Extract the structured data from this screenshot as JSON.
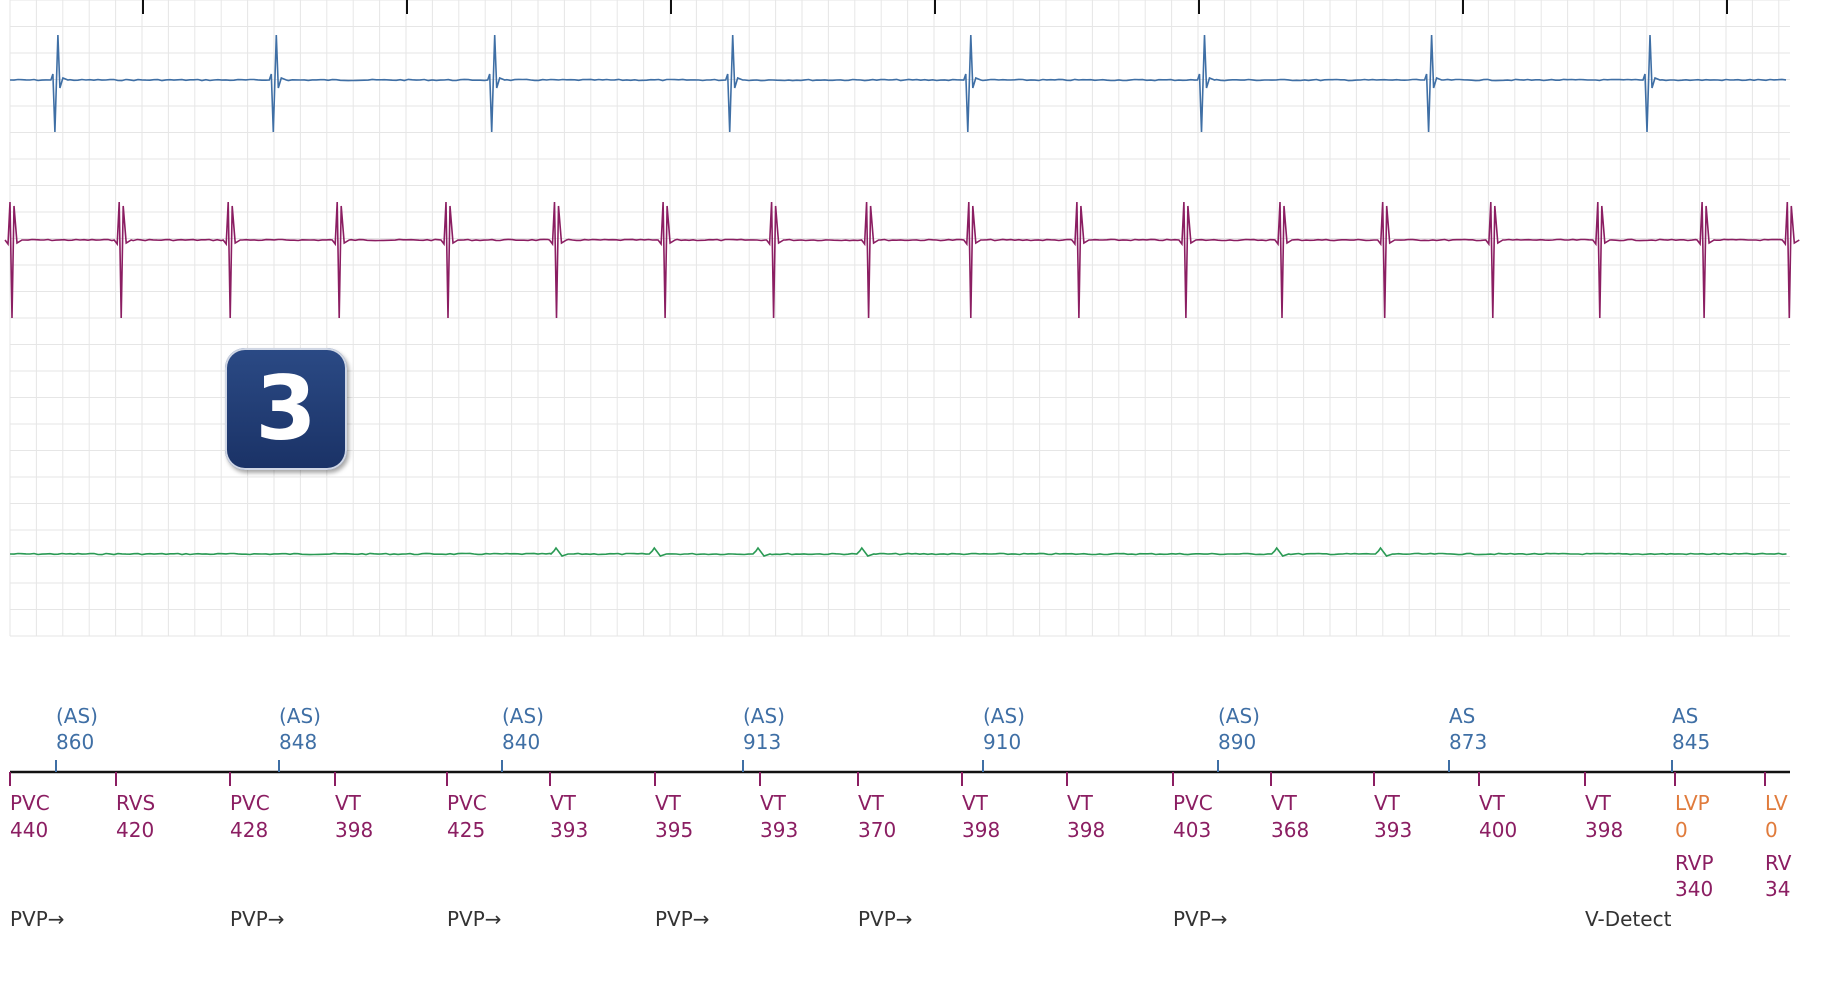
{
  "badge": {
    "label": "3"
  },
  "colors": {
    "atrial": "#3f6fa5",
    "ventricular": "#8b1e62",
    "lv": "#e07b3c",
    "shock": "#2a9a54",
    "marker_text": "#333333",
    "grid": "#e6e6e6"
  },
  "chart_data": {
    "type": "line",
    "title": "",
    "channels": [
      {
        "name": "",
        "color": "atrial",
        "spike_times_ms": [
          420,
          2420,
          4420,
          6600,
          8780,
          10920,
          13000,
          15000
        ]
      },
      {
        "name": "",
        "color": "ventricular",
        "spike_times_ms": [
          0,
          1000,
          1998,
          2996,
          3993,
          4986,
          5981,
          6974,
          7844,
          8780,
          9770,
          10750,
          11630,
          12570,
          13560,
          14540,
          15495,
          16275
        ]
      },
      {
        "name": "",
        "color": "shock",
        "bump_times_ms": [
          5000,
          5900,
          6850,
          7800,
          11600,
          12550
        ]
      }
    ],
    "atrial_markers": [
      {
        "label": "(AS)",
        "value": "860"
      },
      {
        "label": "(AS)",
        "value": "848"
      },
      {
        "label": "(AS)",
        "value": "840"
      },
      {
        "label": "(AS)",
        "value": "913"
      },
      {
        "label": "(AS)",
        "value": "910"
      },
      {
        "label": "(AS)",
        "value": "890"
      },
      {
        "label": "AS",
        "value": "873"
      },
      {
        "label": "AS",
        "value": "845"
      }
    ],
    "ventricular_markers": [
      {
        "label": "PVC",
        "value": "440"
      },
      {
        "label": "RVS",
        "value": "420"
      },
      {
        "label": "PVC",
        "value": "428"
      },
      {
        "label": "VT",
        "value": "398"
      },
      {
        "label": "PVC",
        "value": "425"
      },
      {
        "label": "VT",
        "value": "393"
      },
      {
        "label": "VT",
        "value": "395"
      },
      {
        "label": "VT",
        "value": "393"
      },
      {
        "label": "VT",
        "value": "370"
      },
      {
        "label": "VT",
        "value": "398"
      },
      {
        "label": "VT",
        "value": "398"
      },
      {
        "label": "PVC",
        "value": "403"
      },
      {
        "label": "VT",
        "value": "368"
      },
      {
        "label": "VT",
        "value": "393"
      },
      {
        "label": "VT",
        "value": "400"
      },
      {
        "label": "VT",
        "value": "398"
      },
      {
        "label": "LVP",
        "value": "0",
        "style": "lv",
        "sub_label": "RVP",
        "sub_value": "340"
      },
      {
        "label": "LV",
        "value": "0",
        "style": "lv",
        "sub_label": "RV",
        "sub_value": "34"
      }
    ],
    "annotations": [
      {
        "text": "PVP→"
      },
      {
        "text": "PVP→"
      },
      {
        "text": "PVP→"
      },
      {
        "text": "PVP→"
      },
      {
        "text": "PVP→"
      },
      {
        "text": "PVP→"
      },
      {
        "text": "V-Detect"
      }
    ]
  }
}
